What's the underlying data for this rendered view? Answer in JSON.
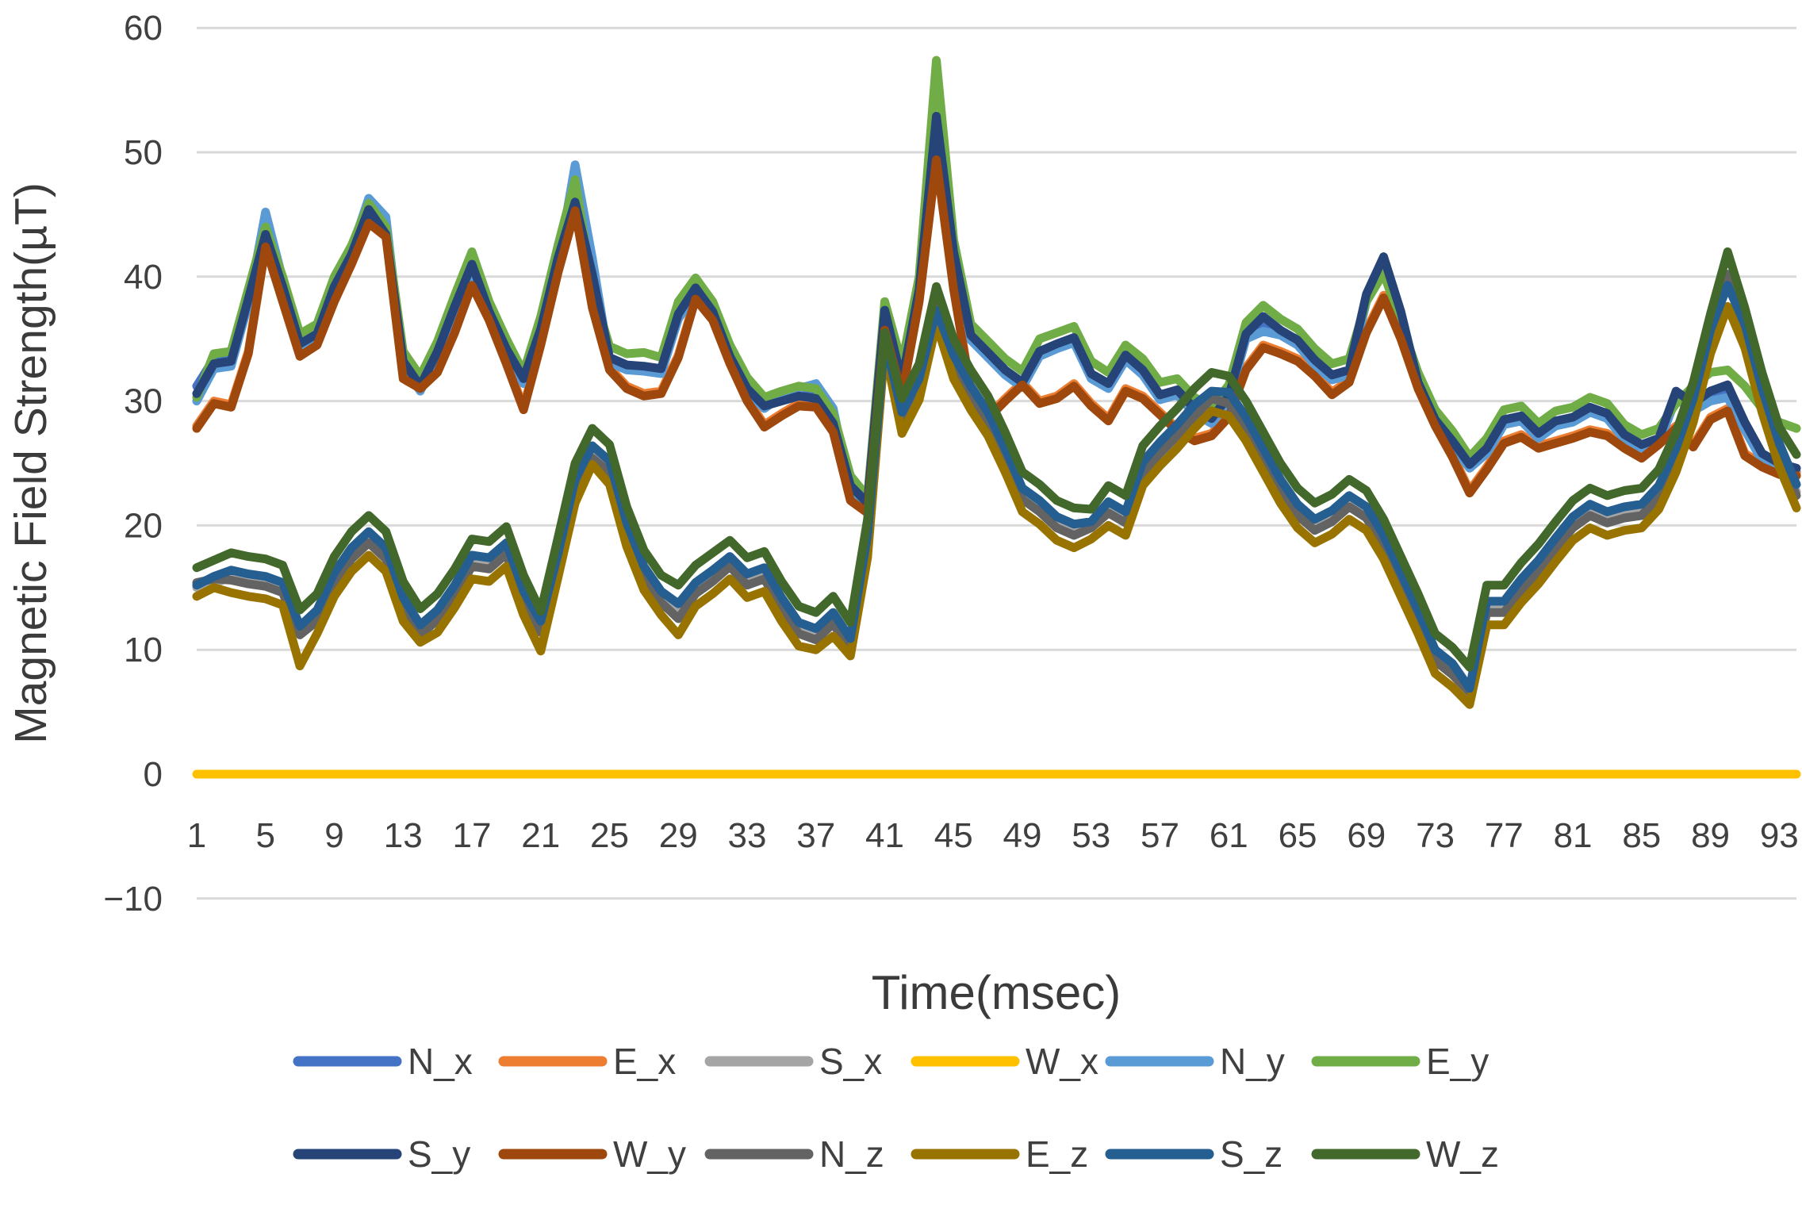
{
  "chart_data": {
    "type": "line",
    "title": "",
    "xlabel": "Time(msec)",
    "ylabel": "Magnetic Field Strength(µT)",
    "x_range": [
      1,
      94
    ],
    "x_ticks": [
      1,
      5,
      9,
      13,
      17,
      21,
      25,
      29,
      33,
      37,
      41,
      45,
      49,
      53,
      57,
      61,
      65,
      69,
      73,
      77,
      81,
      85,
      89,
      93
    ],
    "y_ticks": [
      60,
      50,
      40,
      30,
      20,
      10,
      0,
      -10
    ],
    "ylim": [
      -10,
      60
    ],
    "grid": "horizontal",
    "legend_position": "bottom",
    "legend_rows": [
      [
        "N_x",
        "E_x",
        "S_x",
        "W_x",
        "N_y",
        "E_y"
      ],
      [
        "S_y",
        "W_y",
        "N_z",
        "E_z",
        "S_z",
        "W_z"
      ]
    ],
    "series": [
      {
        "name": "N_x",
        "color": "#4472C4",
        "values": [
          31.2,
          33.4,
          33.6,
          38.0,
          44.2,
          39.5,
          34.4,
          35.2,
          39.0,
          42.0,
          45.6,
          43.8,
          33.0,
          31.0,
          33.8,
          37.4,
          40.8,
          37.0,
          34.0,
          31.6,
          35.6,
          41.2,
          47.0,
          40.0,
          33.3,
          32.7,
          32.6,
          32.4,
          36.8,
          38.9,
          37.0,
          33.4,
          30.9,
          29.5,
          30.2,
          30.7,
          30.8,
          28.8,
          23.0,
          21.6,
          37.0,
          31.4,
          38.8,
          52.0,
          41.8,
          35.1,
          33.7,
          32.3,
          31.3,
          33.8,
          34.4,
          34.9,
          32.0,
          31.2,
          33.5,
          32.3,
          30.3,
          30.7,
          29.2,
          28.4,
          30.2,
          35.2,
          36.2,
          35.5,
          34.7,
          33.1,
          31.9,
          32.3,
          38.3,
          41.0,
          36.9,
          31.3,
          28.3,
          26.6,
          24.7,
          26.0,
          28.3,
          28.6,
          27.2,
          28.2,
          28.5,
          29.3,
          28.8,
          27.1,
          26.3,
          26.8,
          30.5,
          29.5,
          30.4,
          30.8,
          28.0,
          25.5,
          24.7,
          24.3
        ]
      },
      {
        "name": "E_x",
        "color": "#ED7D31",
        "values": [
          28.0,
          30.0,
          29.7,
          34.0,
          42.6,
          38.2,
          33.8,
          34.7,
          38.2,
          41.2,
          44.5,
          43.4,
          32.0,
          31.2,
          32.5,
          35.7,
          39.5,
          36.7,
          33.2,
          29.5,
          34.7,
          40.5,
          45.5,
          37.7,
          32.7,
          31.2,
          30.6,
          30.8,
          33.7,
          38.4,
          36.7,
          33.2,
          30.2,
          28.1,
          29.0,
          29.8,
          29.7,
          27.7,
          22.2,
          21.2,
          35.9,
          30.7,
          38.2,
          49.6,
          39.2,
          30.9,
          28.8,
          30.2,
          31.5,
          30.0,
          30.4,
          31.4,
          29.8,
          28.6,
          31.0,
          30.4,
          29.1,
          27.8,
          27.0,
          27.4,
          28.9,
          32.7,
          34.5,
          34.0,
          33.4,
          32.2,
          30.7,
          31.7,
          35.7,
          38.5,
          35.2,
          31.2,
          28.2,
          25.7,
          22.8,
          24.7,
          26.8,
          27.3,
          26.4,
          26.8,
          27.2,
          27.7,
          27.4,
          26.4,
          25.6,
          26.7,
          28.0,
          26.5,
          28.7,
          29.4,
          25.8,
          24.9,
          24.3,
          24.2
        ]
      },
      {
        "name": "S_x",
        "color": "#A5A5A5",
        "values": [
          15.0,
          15.3,
          15.9,
          15.6,
          15.4,
          14.9,
          11.4,
          12.6,
          15.6,
          17.6,
          18.9,
          17.6,
          13.6,
          11.4,
          12.6,
          14.6,
          17.0,
          16.8,
          18.0,
          14.1,
          11.7,
          17.1,
          23.1,
          25.8,
          24.6,
          19.6,
          16.1,
          14.1,
          12.9,
          14.8,
          15.8,
          16.9,
          15.5,
          16.0,
          13.6,
          11.6,
          11.1,
          12.4,
          10.3,
          18.6,
          34.8,
          28.7,
          31.4,
          38.0,
          33.1,
          30.6,
          28.5,
          25.6,
          22.4,
          21.4,
          20.1,
          19.5,
          19.9,
          21.3,
          20.5,
          24.5,
          26.1,
          27.5,
          29.1,
          30.4,
          30.1,
          28.1,
          25.6,
          23.1,
          21.1,
          19.9,
          20.6,
          21.8,
          20.9,
          18.6,
          15.6,
          12.6,
          9.4,
          8.3,
          6.7,
          13.3,
          13.3,
          15.1,
          16.6,
          18.4,
          20.1,
          21.1,
          20.5,
          20.9,
          21.1,
          22.6,
          25.6,
          29.6,
          35.1,
          39.8,
          35.6,
          30.4,
          26.0,
          22.7
        ]
      },
      {
        "name": "W_x",
        "color": "#FFC000",
        "values": [
          0,
          0,
          0,
          0,
          0,
          0,
          0,
          0,
          0,
          0,
          0,
          0,
          0,
          0,
          0,
          0,
          0,
          0,
          0,
          0,
          0,
          0,
          0,
          0,
          0,
          0,
          0,
          0,
          0,
          0,
          0,
          0,
          0,
          0,
          0,
          0,
          0,
          0,
          0,
          0,
          0,
          0,
          0,
          0,
          0,
          0,
          0,
          0,
          0,
          0,
          0,
          0,
          0,
          0,
          0,
          0,
          0,
          0,
          0,
          0,
          0,
          0,
          0,
          0,
          0,
          0,
          0,
          0,
          0,
          0,
          0,
          0,
          0,
          0,
          0,
          0,
          0,
          0,
          0,
          0,
          0,
          0,
          0,
          0,
          0,
          0,
          0,
          0,
          0,
          0,
          0,
          0,
          0,
          0
        ]
      },
      {
        "name": "N_y",
        "color": "#5B9BD5",
        "values": [
          30.0,
          32.6,
          32.8,
          37.8,
          45.2,
          39.8,
          34.2,
          35.0,
          38.8,
          42.2,
          46.3,
          44.8,
          32.8,
          30.8,
          33.6,
          37.2,
          40.6,
          36.8,
          33.8,
          31.4,
          35.4,
          41.0,
          49.0,
          41.5,
          33.1,
          32.5,
          32.4,
          32.2,
          36.6,
          38.7,
          36.8,
          33.2,
          30.8,
          29.4,
          30.4,
          31.0,
          31.4,
          29.4,
          22.8,
          21.4,
          36.8,
          31.2,
          38.6,
          51.8,
          41.5,
          34.9,
          33.5,
          32.1,
          31.1,
          33.6,
          34.2,
          34.7,
          31.8,
          31.0,
          33.3,
          32.1,
          30.1,
          30.5,
          29.0,
          28.2,
          30.0,
          35.0,
          35.6,
          35.3,
          34.5,
          32.9,
          31.7,
          32.1,
          38.0,
          40.4,
          36.6,
          31.1,
          28.1,
          26.4,
          24.6,
          25.8,
          28.1,
          28.4,
          27.0,
          28.0,
          28.3,
          29.1,
          28.6,
          26.9,
          26.1,
          26.6,
          30.2,
          29.2,
          30.0,
          30.3,
          27.7,
          25.2,
          24.4,
          24.0
        ]
      },
      {
        "name": "E_y",
        "color": "#70AD47",
        "values": [
          30.3,
          33.8,
          34.0,
          39.0,
          44.0,
          40.0,
          35.4,
          36.2,
          40.0,
          42.5,
          45.9,
          44.0,
          34.0,
          32.0,
          34.8,
          38.5,
          42.0,
          38.0,
          35.0,
          32.3,
          36.8,
          42.5,
          47.8,
          39.0,
          34.4,
          33.8,
          33.9,
          33.5,
          38.0,
          39.9,
          38.0,
          34.5,
          31.9,
          30.3,
          30.8,
          31.2,
          31.0,
          29.0,
          24.0,
          22.3,
          38.0,
          33.0,
          40.0,
          57.4,
          43.0,
          36.2,
          34.8,
          33.4,
          32.4,
          35.0,
          35.5,
          36.0,
          33.2,
          32.3,
          34.5,
          33.4,
          31.5,
          31.8,
          30.3,
          29.5,
          31.3,
          36.3,
          37.7,
          36.6,
          35.8,
          34.2,
          33.0,
          33.4,
          38.0,
          40.3,
          36.3,
          32.3,
          29.3,
          27.6,
          25.5,
          27.0,
          29.3,
          29.6,
          28.2,
          29.2,
          29.5,
          30.3,
          29.8,
          28.1,
          27.3,
          27.8,
          29.8,
          31.2,
          32.3,
          32.5,
          31.2,
          29.4,
          28.3,
          27.8
        ]
      },
      {
        "name": "S_y",
        "color": "#264478",
        "values": [
          30.6,
          33.0,
          33.2,
          38.2,
          43.4,
          39.2,
          34.6,
          35.4,
          39.2,
          41.8,
          45.4,
          43.4,
          33.2,
          31.2,
          34.0,
          37.6,
          41.0,
          37.2,
          34.2,
          31.8,
          35.8,
          41.5,
          46.0,
          40.2,
          33.5,
          32.9,
          32.8,
          32.6,
          37.0,
          39.1,
          37.2,
          33.6,
          31.0,
          29.6,
          30.0,
          30.4,
          30.2,
          28.2,
          23.2,
          21.8,
          37.3,
          31.6,
          39.0,
          52.9,
          42.0,
          35.3,
          33.9,
          32.5,
          31.5,
          34.0,
          34.6,
          35.1,
          32.2,
          31.4,
          33.7,
          32.5,
          30.5,
          30.9,
          29.4,
          28.6,
          30.4,
          35.4,
          36.8,
          35.7,
          34.9,
          33.3,
          32.1,
          32.5,
          38.6,
          41.6,
          37.2,
          31.5,
          28.5,
          26.8,
          24.9,
          26.2,
          28.5,
          28.8,
          27.4,
          28.4,
          28.7,
          29.5,
          29.0,
          27.3,
          26.5,
          27.0,
          30.8,
          29.8,
          30.8,
          31.3,
          28.3,
          25.8,
          25.0,
          24.6
        ]
      },
      {
        "name": "W_y",
        "color": "#9E480E",
        "values": [
          27.8,
          29.8,
          29.5,
          33.8,
          42.4,
          38.0,
          33.6,
          34.5,
          38.0,
          41.0,
          44.3,
          43.2,
          31.8,
          31.0,
          32.3,
          35.5,
          39.3,
          36.5,
          33.0,
          29.3,
          34.5,
          40.3,
          45.3,
          37.5,
          32.5,
          31.0,
          30.4,
          30.6,
          33.5,
          38.2,
          36.5,
          33.0,
          30.0,
          27.9,
          28.8,
          29.6,
          29.5,
          27.5,
          22.0,
          21.0,
          35.7,
          30.5,
          38.0,
          49.4,
          39.0,
          30.7,
          28.6,
          30.0,
          31.3,
          29.8,
          30.2,
          31.2,
          29.6,
          28.4,
          30.8,
          30.2,
          28.9,
          27.6,
          26.8,
          27.2,
          28.7,
          32.5,
          34.3,
          33.8,
          33.2,
          32.0,
          30.5,
          31.5,
          35.5,
          38.3,
          35.0,
          31.0,
          28.0,
          25.5,
          22.6,
          24.5,
          26.6,
          27.1,
          26.2,
          26.6,
          27.0,
          27.5,
          27.2,
          26.2,
          25.4,
          26.5,
          27.8,
          26.3,
          28.5,
          29.2,
          25.6,
          24.7,
          24.1,
          24.0
        ]
      },
      {
        "name": "N_z",
        "color": "#636363",
        "values": [
          15.4,
          15.7,
          15.6,
          15.3,
          15.1,
          14.6,
          11.2,
          12.3,
          15.3,
          17.3,
          18.6,
          17.3,
          13.3,
          11.2,
          12.4,
          14.4,
          16.7,
          16.5,
          17.7,
          13.8,
          11.4,
          16.8,
          22.8,
          25.4,
          24.3,
          19.3,
          15.8,
          13.8,
          12.5,
          14.5,
          15.5,
          16.7,
          15.2,
          15.7,
          13.3,
          11.3,
          10.8,
          12.1,
          10.0,
          18.4,
          34.6,
          28.4,
          31.1,
          38.6,
          32.8,
          30.3,
          28.2,
          25.3,
          22.1,
          21.1,
          19.8,
          19.2,
          19.8,
          21.0,
          20.2,
          24.2,
          25.8,
          27.2,
          28.8,
          30.2,
          29.8,
          27.8,
          25.3,
          22.8,
          20.8,
          19.6,
          20.3,
          21.5,
          20.6,
          18.3,
          15.3,
          12.3,
          9.1,
          8.0,
          6.6,
          13.0,
          13.0,
          14.8,
          16.3,
          18.1,
          19.8,
          20.8,
          20.2,
          20.6,
          20.8,
          22.3,
          25.3,
          29.3,
          34.8,
          40.2,
          35.3,
          30.1,
          25.7,
          22.4
        ]
      },
      {
        "name": "E_z",
        "color": "#997300",
        "values": [
          14.3,
          15.0,
          14.6,
          14.3,
          14.1,
          13.6,
          8.7,
          11.3,
          14.3,
          16.3,
          17.6,
          16.3,
          12.3,
          10.6,
          11.4,
          13.4,
          15.7,
          15.5,
          16.7,
          12.8,
          9.9,
          15.8,
          21.8,
          24.9,
          23.3,
          18.3,
          14.8,
          12.8,
          11.2,
          13.5,
          14.5,
          15.7,
          14.2,
          14.7,
          12.3,
          10.3,
          10.0,
          11.1,
          9.5,
          17.4,
          34.2,
          27.4,
          30.1,
          36.2,
          31.8,
          29.3,
          27.2,
          24.3,
          21.1,
          20.1,
          18.8,
          18.2,
          18.9,
          20.0,
          19.2,
          23.2,
          24.8,
          26.2,
          27.8,
          29.2,
          28.8,
          26.8,
          24.3,
          21.8,
          19.8,
          18.6,
          19.3,
          20.5,
          19.6,
          17.3,
          14.3,
          11.3,
          8.1,
          7.0,
          5.6,
          12.0,
          12.0,
          13.8,
          15.3,
          17.1,
          18.8,
          19.8,
          19.2,
          19.6,
          19.8,
          21.3,
          24.3,
          28.3,
          33.8,
          37.6,
          34.3,
          29.1,
          24.7,
          21.4
        ]
      },
      {
        "name": "S_z",
        "color": "#255E91",
        "values": [
          15.2,
          15.9,
          16.4,
          16.1,
          15.9,
          15.4,
          11.9,
          13.2,
          16.2,
          18.2,
          19.5,
          18.2,
          14.2,
          12.0,
          13.2,
          15.2,
          17.6,
          17.4,
          18.6,
          14.7,
          12.3,
          17.7,
          23.7,
          26.4,
          25.2,
          20.2,
          16.7,
          14.7,
          13.7,
          15.4,
          16.4,
          17.5,
          16.1,
          16.6,
          14.2,
          12.2,
          11.7,
          13.0,
          10.9,
          19.2,
          34.9,
          29.1,
          31.8,
          37.3,
          33.7,
          31.2,
          29.1,
          26.2,
          23.0,
          22.0,
          20.7,
          20.1,
          20.3,
          21.9,
          21.1,
          25.1,
          26.7,
          28.1,
          29.7,
          30.8,
          30.7,
          28.7,
          26.2,
          23.7,
          21.7,
          20.5,
          21.2,
          22.4,
          21.5,
          19.2,
          16.2,
          13.2,
          10.0,
          8.9,
          6.9,
          13.9,
          13.9,
          15.7,
          17.2,
          19.0,
          20.7,
          21.7,
          21.1,
          21.5,
          21.7,
          23.2,
          26.2,
          30.2,
          35.7,
          39.3,
          36.2,
          31.0,
          26.6,
          23.3
        ]
      },
      {
        "name": "W_z",
        "color": "#43682B",
        "values": [
          16.6,
          17.2,
          17.8,
          17.5,
          17.3,
          16.8,
          13.2,
          14.5,
          17.5,
          19.5,
          20.8,
          19.5,
          15.5,
          13.3,
          14.5,
          16.5,
          18.9,
          18.7,
          19.9,
          16.0,
          13.1,
          19.0,
          25.0,
          27.8,
          26.5,
          21.5,
          18.0,
          16.0,
          15.2,
          16.8,
          17.8,
          18.8,
          17.4,
          17.9,
          15.5,
          13.5,
          13.0,
          14.3,
          12.2,
          20.5,
          35.5,
          30.2,
          33.0,
          39.2,
          35.0,
          32.5,
          30.4,
          27.5,
          24.3,
          23.3,
          22.0,
          21.4,
          21.3,
          23.2,
          22.4,
          26.4,
          28.0,
          29.4,
          31.0,
          32.3,
          32.0,
          30.0,
          27.5,
          25.0,
          23.0,
          21.8,
          22.5,
          23.7,
          22.8,
          20.5,
          17.5,
          14.5,
          11.3,
          10.2,
          8.6,
          15.2,
          15.2,
          17.0,
          18.5,
          20.3,
          22.0,
          23.0,
          22.4,
          22.8,
          23.0,
          24.5,
          27.5,
          31.5,
          37.0,
          42.0,
          37.5,
          32.3,
          27.9,
          25.7
        ]
      }
    ]
  },
  "style": {
    "grid_color": "#d9d9d9",
    "background": "#ffffff",
    "line_width": 11,
    "legend_swatch_width": 124,
    "legend_swatch_thickness": 13
  }
}
